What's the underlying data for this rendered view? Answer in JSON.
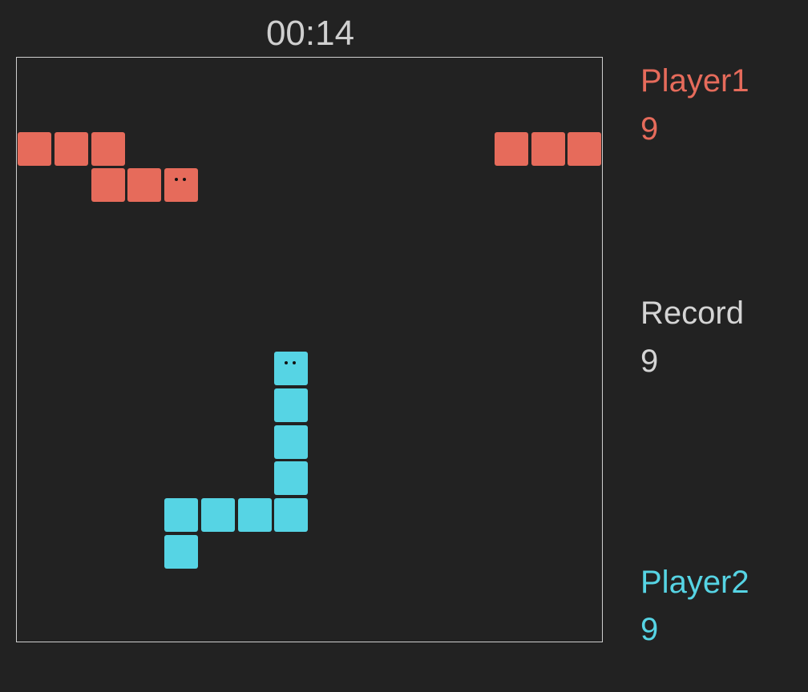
{
  "timer": "00:14",
  "colors": {
    "background": "#222222",
    "border": "#cfcfcf",
    "player1": "#e66b5b",
    "player2": "#56d4e4",
    "record": "#d4d4d4"
  },
  "board": {
    "cols": 16,
    "rows": 16
  },
  "players": [
    {
      "key": "p1",
      "label": "Player1",
      "score": "9",
      "head": [
        4,
        3
      ],
      "segments": [
        [
          4,
          3
        ],
        [
          3,
          3
        ],
        [
          2,
          3
        ],
        [
          2,
          2
        ],
        [
          1,
          2
        ],
        [
          0,
          2
        ],
        [
          15,
          2
        ],
        [
          14,
          2
        ],
        [
          13,
          2
        ]
      ]
    },
    {
      "key": "p2",
      "label": "Player2",
      "score": "9",
      "head": [
        7,
        8
      ],
      "segments": [
        [
          7,
          8
        ],
        [
          7,
          9
        ],
        [
          7,
          10
        ],
        [
          7,
          11
        ],
        [
          7,
          12
        ],
        [
          6,
          12
        ],
        [
          5,
          12
        ],
        [
          4,
          12
        ],
        [
          4,
          13
        ]
      ]
    }
  ],
  "record": {
    "label": "Record",
    "score": "9"
  }
}
